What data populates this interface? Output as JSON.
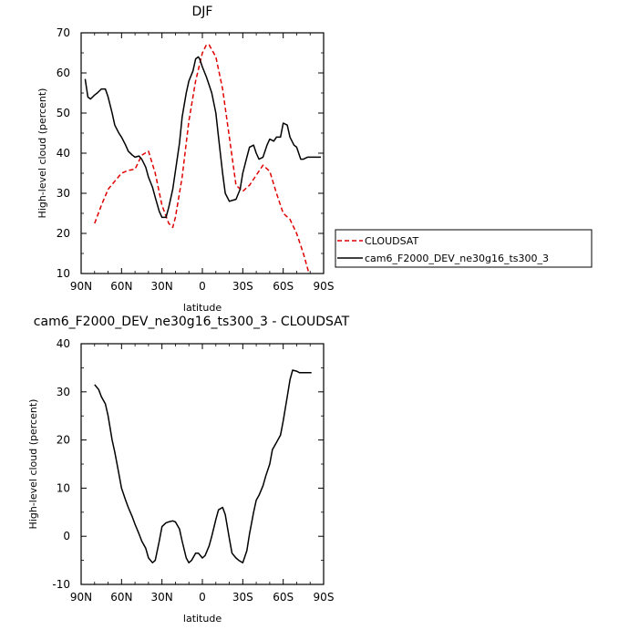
{
  "chart_data": [
    {
      "type": "line",
      "title": "DJF",
      "xlabel": "latitude",
      "ylabel": "High-level cloud (percent)",
      "xlim": [
        90,
        -90
      ],
      "ylim": [
        10,
        70
      ],
      "x_ticks": [
        90,
        60,
        30,
        0,
        -30,
        -60,
        -90
      ],
      "x_tick_labels": [
        "90N",
        "60N",
        "30N",
        "0",
        "30S",
        "60S",
        "90S"
      ],
      "y_ticks": [
        10,
        20,
        30,
        40,
        50,
        60,
        70
      ],
      "legend_position": "right-outside",
      "series": [
        {
          "name": "CLOUDSAT",
          "color": "#e00000",
          "dash": "dashed",
          "x": [
            80,
            75,
            70,
            65,
            60,
            55,
            50,
            45,
            40,
            35,
            30,
            25,
            22,
            20,
            15,
            10,
            5,
            0,
            -3,
            -5,
            -10,
            -15,
            -20,
            -25,
            -30,
            -35,
            -40,
            -45,
            -50,
            -55,
            -60,
            -65,
            -70,
            -75,
            -80
          ],
          "y": [
            22.5,
            27,
            31,
            33,
            35,
            35.7,
            36,
            39.5,
            40.5,
            35,
            27,
            22.5,
            21.5,
            24,
            34,
            48,
            58,
            65,
            67,
            67,
            64,
            56,
            44,
            32,
            30.5,
            32,
            34.5,
            37,
            35.5,
            30,
            25,
            23.5,
            20,
            15,
            9
          ]
        },
        {
          "name": "cam6_F2000_DEV_ne30g16_ts300_3",
          "color": "#000000",
          "dash": "solid",
          "x": [
            87,
            85,
            83,
            80,
            78,
            75,
            72,
            70,
            67,
            65,
            62,
            60,
            57,
            55,
            52,
            50,
            47,
            45,
            42,
            40,
            37,
            35,
            32,
            30,
            27,
            25,
            22,
            20,
            17,
            15,
            12,
            10,
            7,
            5,
            3,
            2,
            0,
            -3,
            -5,
            -7,
            -10,
            -12,
            -15,
            -17,
            -20,
            -22,
            -25,
            -28,
            -30,
            -33,
            -35,
            -38,
            -40,
            -42,
            -45,
            -48,
            -50,
            -53,
            -55,
            -58,
            -60,
            -63,
            -65,
            -68,
            -70,
            -73,
            -75,
            -78,
            -80,
            -82,
            -85,
            -88
          ],
          "y": [
            58.5,
            54,
            53.5,
            54.5,
            55,
            56,
            56,
            54,
            50,
            47,
            45,
            44,
            42,
            40.5,
            39.5,
            39,
            39.3,
            38.5,
            36.5,
            34,
            31.5,
            29,
            25.5,
            24,
            24,
            26.5,
            31,
            35.5,
            42.5,
            49,
            55,
            58,
            60.5,
            63.5,
            64,
            63.5,
            61.5,
            59,
            57,
            55,
            50,
            44,
            35,
            30,
            28,
            28.2,
            28.5,
            31,
            35,
            39,
            41.5,
            42,
            40,
            38.5,
            39,
            42,
            43.5,
            43,
            44,
            44,
            47.5,
            47,
            44,
            42,
            41.5,
            38.5,
            38.5,
            39,
            39,
            39,
            39,
            39
          ]
        }
      ]
    },
    {
      "type": "line",
      "title": "cam6_F2000_DEV_ne30g16_ts300_3 - CLOUDSAT",
      "xlabel": "latitude",
      "ylabel": "High-level cloud (percent)",
      "xlim": [
        90,
        -90
      ],
      "ylim": [
        -10,
        40
      ],
      "x_ticks": [
        90,
        60,
        30,
        0,
        -30,
        -60,
        -90
      ],
      "x_tick_labels": [
        "90N",
        "60N",
        "30N",
        "0",
        "30S",
        "60S",
        "90S"
      ],
      "y_ticks": [
        -10,
        0,
        10,
        20,
        30,
        40
      ],
      "series": [
        {
          "color": "#000000",
          "dash": "solid",
          "x": [
            80,
            77,
            75,
            72,
            70,
            67,
            65,
            62,
            60,
            57,
            55,
            52,
            50,
            47,
            45,
            42,
            40,
            37,
            35,
            32,
            30,
            27,
            25,
            22,
            20,
            17,
            15,
            12,
            10,
            8,
            5,
            3,
            0,
            -2,
            -5,
            -7,
            -10,
            -12,
            -15,
            -17,
            -20,
            -22,
            -25,
            -27,
            -30,
            -33,
            -35,
            -38,
            -40,
            -42,
            -45,
            -47,
            -50,
            -52,
            -55,
            -58,
            -60,
            -63,
            -65,
            -67,
            -70,
            -72,
            -75,
            -77,
            -79,
            -81
          ],
          "y": [
            31.5,
            30.5,
            29,
            27.5,
            25,
            20,
            17.5,
            13,
            10,
            7.5,
            6,
            4,
            2.5,
            0.5,
            -1,
            -2.5,
            -4.5,
            -5.5,
            -5,
            -1,
            2,
            2.8,
            3,
            3.2,
            3,
            1.5,
            -1,
            -4.5,
            -5.5,
            -5,
            -3.5,
            -3.5,
            -4.5,
            -4,
            -2,
            0,
            3.5,
            5.5,
            6,
            4.5,
            -0.5,
            -3.5,
            -4.5,
            -5,
            -5.5,
            -3,
            0.5,
            5,
            7.5,
            8.5,
            10.5,
            12.5,
            15,
            18,
            19.5,
            21,
            24,
            29,
            32.5,
            34.5,
            34.3,
            34,
            34,
            34,
            34,
            34
          ]
        }
      ]
    }
  ]
}
